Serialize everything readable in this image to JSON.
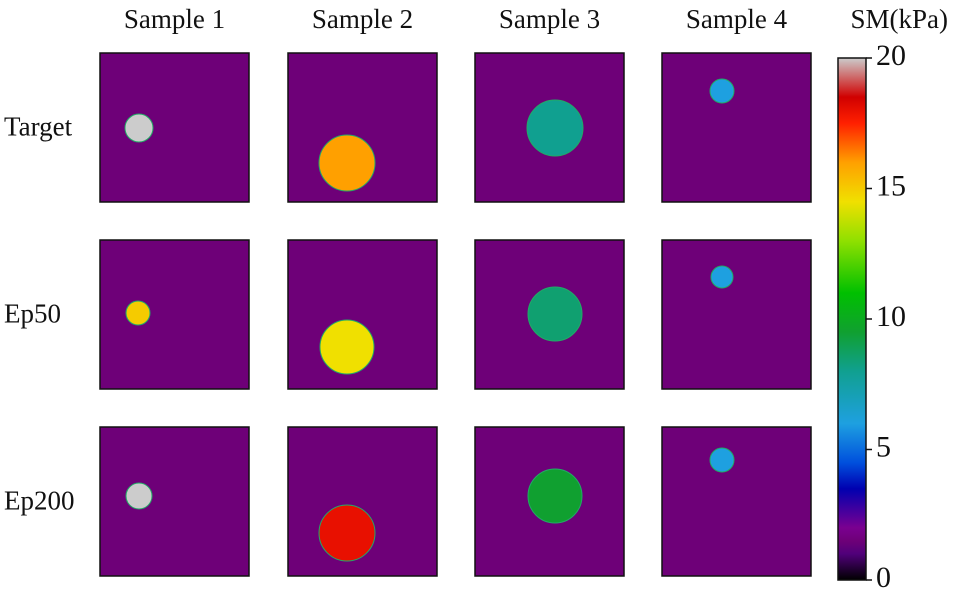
{
  "chart_data": {
    "type": "heatmap-grid",
    "columns": [
      "Sample 1",
      "Sample 2",
      "Sample 3",
      "Sample 4"
    ],
    "rows": [
      "Target",
      "Ep50",
      "Ep200"
    ],
    "colorbar_label": "SM(kPa)",
    "clim": [
      0,
      20
    ],
    "cticks": [
      0,
      5,
      10,
      15,
      20
    ],
    "background": 1.5,
    "values": [
      [
        20,
        16,
        8,
        6
      ],
      [
        15,
        14.5,
        8.5,
        6
      ],
      [
        20,
        18,
        9.5,
        6
      ]
    ]
  }
}
